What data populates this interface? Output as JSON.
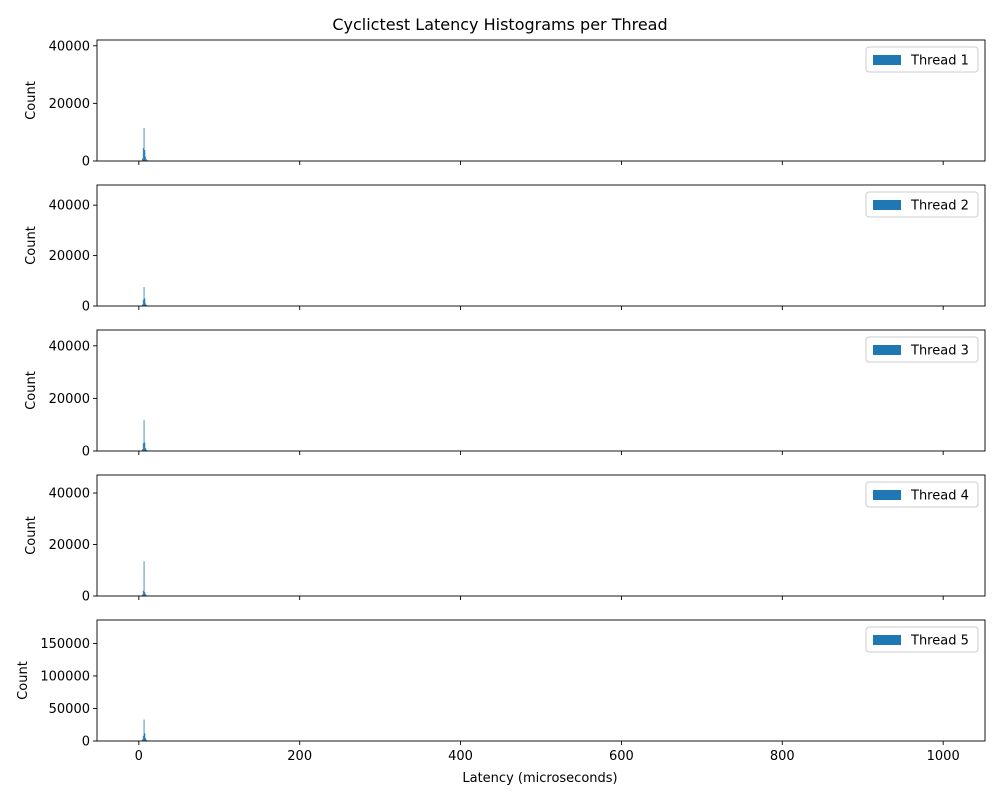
{
  "figure": {
    "title": "Cyclictest Latency Histograms per Thread",
    "xlabel": "Latency (microseconds)",
    "bar_color": "#1f77b4"
  },
  "chart_data": [
    {
      "type": "bar",
      "title": "",
      "xlabel": "",
      "ylabel": "Count",
      "xlim": [
        -52,
        1052
      ],
      "ylim": [
        0,
        42000
      ],
      "xticks": [
        0,
        200,
        400,
        600,
        800,
        1000
      ],
      "yticks": [
        0,
        20000,
        40000
      ],
      "legend_position": "top-right",
      "series": [
        {
          "name": "Thread 1",
          "color": "#1f77b4",
          "bin_width": 1,
          "x": [
            3,
            4,
            5,
            6,
            7,
            8,
            9,
            10,
            11,
            12,
            13,
            14,
            15,
            16,
            17,
            18,
            20
          ],
          "values": [
            150,
            900,
            4500,
            11500,
            3800,
            1500,
            600,
            300,
            150,
            90,
            60,
            40,
            30,
            20,
            15,
            10,
            8
          ]
        }
      ]
    },
    {
      "type": "bar",
      "title": "",
      "xlabel": "",
      "ylabel": "Count",
      "xlim": [
        -52,
        1052
      ],
      "ylim": [
        0,
        48000
      ],
      "xticks": [
        0,
        200,
        400,
        600,
        800,
        1000
      ],
      "yticks": [
        0,
        20000,
        40000
      ],
      "legend_position": "top-right",
      "series": [
        {
          "name": "Thread 2",
          "color": "#1f77b4",
          "bin_width": 1,
          "x": [
            3,
            4,
            5,
            6,
            7,
            8,
            9,
            10,
            11,
            12,
            13,
            14,
            15,
            16,
            18
          ],
          "values": [
            100,
            600,
            2500,
            7500,
            3000,
            1000,
            400,
            200,
            120,
            70,
            40,
            30,
            20,
            12,
            8
          ]
        }
      ]
    },
    {
      "type": "bar",
      "title": "",
      "xlabel": "",
      "ylabel": "Count",
      "xlim": [
        -52,
        1052
      ],
      "ylim": [
        0,
        46000
      ],
      "xticks": [
        0,
        200,
        400,
        600,
        800,
        1000
      ],
      "yticks": [
        0,
        20000,
        40000
      ],
      "legend_position": "top-right",
      "series": [
        {
          "name": "Thread 3",
          "color": "#1f77b4",
          "bin_width": 1,
          "x": [
            3,
            4,
            5,
            6,
            7,
            8,
            9,
            10,
            11,
            12,
            13,
            14,
            15,
            16,
            18
          ],
          "values": [
            120,
            700,
            3000,
            11800,
            3200,
            1100,
            500,
            250,
            150,
            90,
            60,
            40,
            25,
            15,
            10
          ]
        }
      ]
    },
    {
      "type": "bar",
      "title": "",
      "xlabel": "",
      "ylabel": "Count",
      "xlim": [
        -52,
        1052
      ],
      "ylim": [
        0,
        47000
      ],
      "xticks": [
        0,
        200,
        400,
        600,
        800,
        1000
      ],
      "yticks": [
        0,
        20000,
        40000
      ],
      "legend_position": "top-right",
      "series": [
        {
          "name": "Thread 4",
          "color": "#1f77b4",
          "bin_width": 1,
          "x": [
            3,
            4,
            5,
            6,
            7,
            8,
            9,
            10,
            11,
            12,
            13,
            14,
            15,
            16
          ],
          "values": [
            100,
            500,
            2000,
            13500,
            1500,
            700,
            300,
            150,
            90,
            50,
            30,
            20,
            12,
            8
          ]
        }
      ]
    },
    {
      "type": "bar",
      "title": "",
      "xlabel": "Latency (microseconds)",
      "ylabel": "Count",
      "xlim": [
        -52,
        1052
      ],
      "ylim": [
        0,
        186000
      ],
      "xticks": [
        0,
        200,
        400,
        600,
        800,
        1000
      ],
      "yticks": [
        0,
        50000,
        100000,
        150000
      ],
      "legend_position": "top-right",
      "series": [
        {
          "name": "Thread 5",
          "color": "#1f77b4",
          "bin_width": 1,
          "x": [
            3,
            4,
            5,
            6,
            7,
            8,
            9,
            10,
            11,
            12,
            13,
            14,
            15,
            16,
            18
          ],
          "values": [
            400,
            2500,
            8000,
            33000,
            12000,
            4500,
            1800,
            800,
            400,
            250,
            150,
            100,
            70,
            40,
            20
          ]
        }
      ]
    }
  ]
}
